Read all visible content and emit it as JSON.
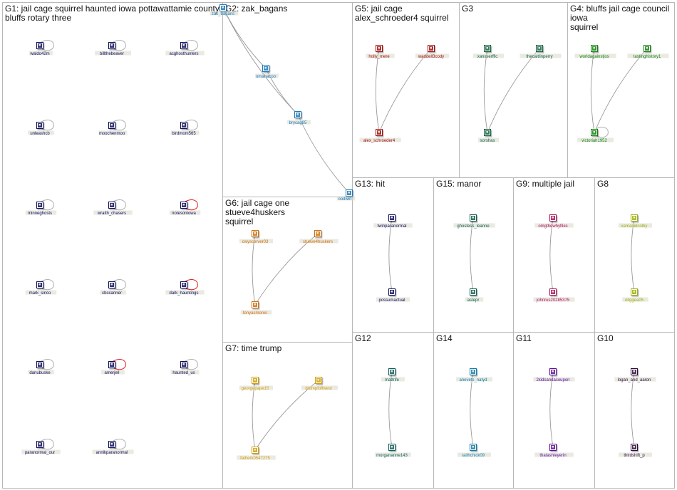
{
  "groups": [
    {
      "id": "G1",
      "title": "G1: jail cage squirrel haunted iowa pottawattamie county bluffs rotary three",
      "nodes": [
        {
          "label": "waldo42m",
          "color": "#101060",
          "self": true
        },
        {
          "label": "billthebeaver",
          "color": "#101060",
          "self": true
        },
        {
          "label": "acghosthunters",
          "color": "#101060",
          "self": true
        },
        {
          "label": "unleashcb",
          "color": "#101060",
          "self": true
        },
        {
          "label": "moochenmoo",
          "color": "#101060",
          "self": true
        },
        {
          "label": "birdmom565",
          "color": "#101060",
          "self": true
        },
        {
          "label": "minneghosts",
          "color": "#101060",
          "self": true
        },
        {
          "label": "wraith_chasers",
          "color": "#101060",
          "self": true
        },
        {
          "label": "notesoniowa",
          "color": "#101060",
          "self": true,
          "selfColor": "#e02020"
        },
        {
          "label": "mark_sirico",
          "color": "#101060",
          "self": true
        },
        {
          "label": "cbscanner",
          "color": "#101060",
          "self": true
        },
        {
          "label": "dark_hauntings",
          "color": "#101060",
          "self": true,
          "selfColor": "#e02020"
        },
        {
          "label": "danubuske",
          "color": "#101060",
          "self": true
        },
        {
          "label": "amerjell",
          "color": "#101060",
          "self": true,
          "selfColor": "#e02020"
        },
        {
          "label": "haunted_us",
          "color": "#101060",
          "self": true
        },
        {
          "label": "paranormal_our",
          "color": "#101060",
          "self": true
        },
        {
          "label": "annikparanormal",
          "color": "#101060",
          "self": true
        }
      ],
      "edges": []
    },
    {
      "id": "G2",
      "title": "G2: zak_bagans",
      "nodes": [
        {
          "label": "zak_bagans",
          "color": "#1a7ac0"
        },
        {
          "label": "omahacoo",
          "color": "#1a7ac0"
        },
        {
          "label": "brycag85",
          "color": "#1a7ac0"
        },
        {
          "label": "oodwin",
          "color": "#1a7ac0"
        }
      ],
      "edges": [
        [
          0,
          1
        ],
        [
          0,
          2
        ],
        [
          1,
          2
        ],
        [
          2,
          3
        ]
      ]
    },
    {
      "id": "G5",
      "title": "G5: jail cage\nalex_schroeder4 squirrel",
      "nodes": [
        {
          "label": "holly_mere",
          "color": "#a01010"
        },
        {
          "label": "waddell3cody",
          "color": "#a01010"
        },
        {
          "label": "alex_schroeder4",
          "color": "#a01010"
        }
      ],
      "edges": [
        [
          0,
          2
        ],
        [
          1,
          2
        ]
      ]
    },
    {
      "id": "G3",
      "title": "G3",
      "nodes": [
        {
          "label": "xanxserfflc",
          "color": "#106040"
        },
        {
          "label": "thecaitlinperry",
          "color": "#106040"
        },
        {
          "label": "sorshas",
          "color": "#106040"
        }
      ],
      "edges": [
        [
          0,
          2
        ],
        [
          1,
          2
        ]
      ]
    },
    {
      "id": "G4",
      "title": "G4: bluffs jail cage council iowa\nsquirrel",
      "nodes": [
        {
          "label": "worldagainstjos",
          "color": "#108010"
        },
        {
          "label": "tastinghistory1",
          "color": "#108010"
        },
        {
          "label": "victoriah1952",
          "color": "#108010",
          "self": true
        }
      ],
      "edges": [
        [
          0,
          2
        ],
        [
          1,
          2
        ]
      ]
    },
    {
      "id": "G6",
      "title": "G6: jail cage one stueve4huskers\nsquirrel",
      "nodes": [
        {
          "label": "cwyscerver03",
          "color": "#d07010"
        },
        {
          "label": "stueve4huskers",
          "color": "#d07010"
        },
        {
          "label": "tonyasmores",
          "color": "#d07010"
        }
      ],
      "edges": [
        [
          0,
          2
        ],
        [
          1,
          2
        ]
      ]
    },
    {
      "id": "G7",
      "title": "G7: time trump",
      "nodes": [
        {
          "label": "georgepape15",
          "color": "#d0a010"
        },
        {
          "label": "drumpfoffwest",
          "color": "#d0a010"
        },
        {
          "label": "fatherk0547275",
          "color": "#d0a010"
        }
      ],
      "edges": [
        [
          0,
          2
        ],
        [
          1,
          2
        ]
      ]
    },
    {
      "id": "G13",
      "title": "G13: hit",
      "nodes": [
        {
          "label": "twinparanormal",
          "color": "#101060"
        },
        {
          "label": "possumactual",
          "color": "#101060"
        }
      ],
      "edges": [
        [
          0,
          1
        ]
      ]
    },
    {
      "id": "G15",
      "title": "G15: manor",
      "nodes": [
        {
          "label": "ghostess_leanne",
          "color": "#106050"
        },
        {
          "label": "astepr",
          "color": "#106050"
        }
      ],
      "edges": [
        [
          0,
          1
        ]
      ]
    },
    {
      "id": "G9",
      "title": "G9: multiple jail",
      "nodes": [
        {
          "label": "omgthewhyfiles",
          "color": "#b01060"
        },
        {
          "label": "johnrus20285375",
          "color": "#b01060"
        }
      ],
      "edges": [
        [
          0,
          1
        ]
      ]
    },
    {
      "id": "G8",
      "title": "G8",
      "nodes": [
        {
          "label": "xamanidcolby",
          "color": "#a0b010"
        },
        {
          "label": "eliggea05",
          "color": "#a0b010"
        }
      ],
      "edges": [
        [
          0,
          1
        ]
      ]
    },
    {
      "id": "G12",
      "title": "G12",
      "nodes": [
        {
          "label": "mattrife",
          "color": "#106060"
        },
        {
          "label": "morgananne143",
          "color": "#106060"
        }
      ],
      "edges": [
        [
          0,
          1
        ]
      ]
    },
    {
      "id": "G14",
      "title": "G14",
      "nodes": [
        {
          "label": "anevets_natyd",
          "color": "#1080b0"
        },
        {
          "label": "raithchick09",
          "color": "#1080b0"
        }
      ],
      "edges": [
        [
          0,
          1
        ]
      ]
    },
    {
      "id": "G11",
      "title": "G11",
      "nodes": [
        {
          "label": "2kidsandacoupon",
          "color": "#6010a0"
        },
        {
          "label": "thatashleyerin",
          "color": "#6010a0"
        }
      ],
      "edges": [
        [
          0,
          1
        ]
      ]
    },
    {
      "id": "G10",
      "title": "G10",
      "nodes": [
        {
          "label": "logan_and_aaron",
          "color": "#301040"
        },
        {
          "label": "thirdshift_p",
          "color": "#301040"
        }
      ],
      "edges": [
        [
          0,
          1
        ]
      ]
    }
  ]
}
